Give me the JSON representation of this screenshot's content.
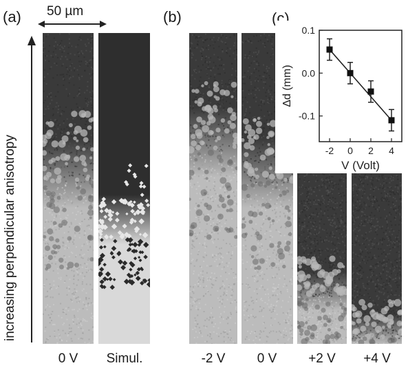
{
  "panels": {
    "a": "(a)",
    "b": "(b)",
    "c": "(c)"
  },
  "scale_bar": {
    "label": "50 µm"
  },
  "vertical_axis_label": "increasing perpendicular anisotropy",
  "strips": {
    "a_exp": {
      "label": "0 V",
      "domain_boundary_fraction": 0.48
    },
    "a_sim": {
      "label": "Simul.",
      "domain_boundary_fraction": 0.62
    },
    "b_m2": {
      "label": "-2 V",
      "domain_boundary_fraction": 0.38
    },
    "b_0": {
      "label": "0 V",
      "domain_boundary_fraction": 0.48
    },
    "b_p2": {
      "label": "+2 V",
      "domain_boundary_fraction": 0.72
    },
    "b_p4": {
      "label": "+4 V",
      "domain_boundary_fraction": 0.97
    }
  },
  "colors": {
    "dark_domain": "#3a3a3a",
    "light_domain": "#bcbcbc",
    "sim_dark": "#2e2e2e",
    "sim_light": "#d9d9d9",
    "line": "#222222"
  },
  "chart_data": {
    "type": "scatter",
    "xlabel": "V (Volt)",
    "ylabel": "Δd (mm)",
    "x": [
      -2,
      0,
      2,
      4
    ],
    "y": [
      0.055,
      0.0,
      -0.043,
      -0.11
    ],
    "yerr": [
      0.025,
      0.025,
      0.025,
      0.025
    ],
    "fit_line": {
      "x": [
        -2,
        4
      ],
      "y": [
        0.055,
        -0.11
      ]
    },
    "xlim": [
      -3,
      5
    ],
    "ylim": [
      -0.16,
      0.1
    ],
    "xticks": [
      -2,
      0,
      2,
      4
    ],
    "xtick_labels": [
      "-2",
      "0",
      "2",
      "4"
    ],
    "yticks": [
      0.1,
      0.0,
      -0.1
    ],
    "ytick_labels": [
      "0.1",
      "0.0",
      "-0.1"
    ]
  }
}
